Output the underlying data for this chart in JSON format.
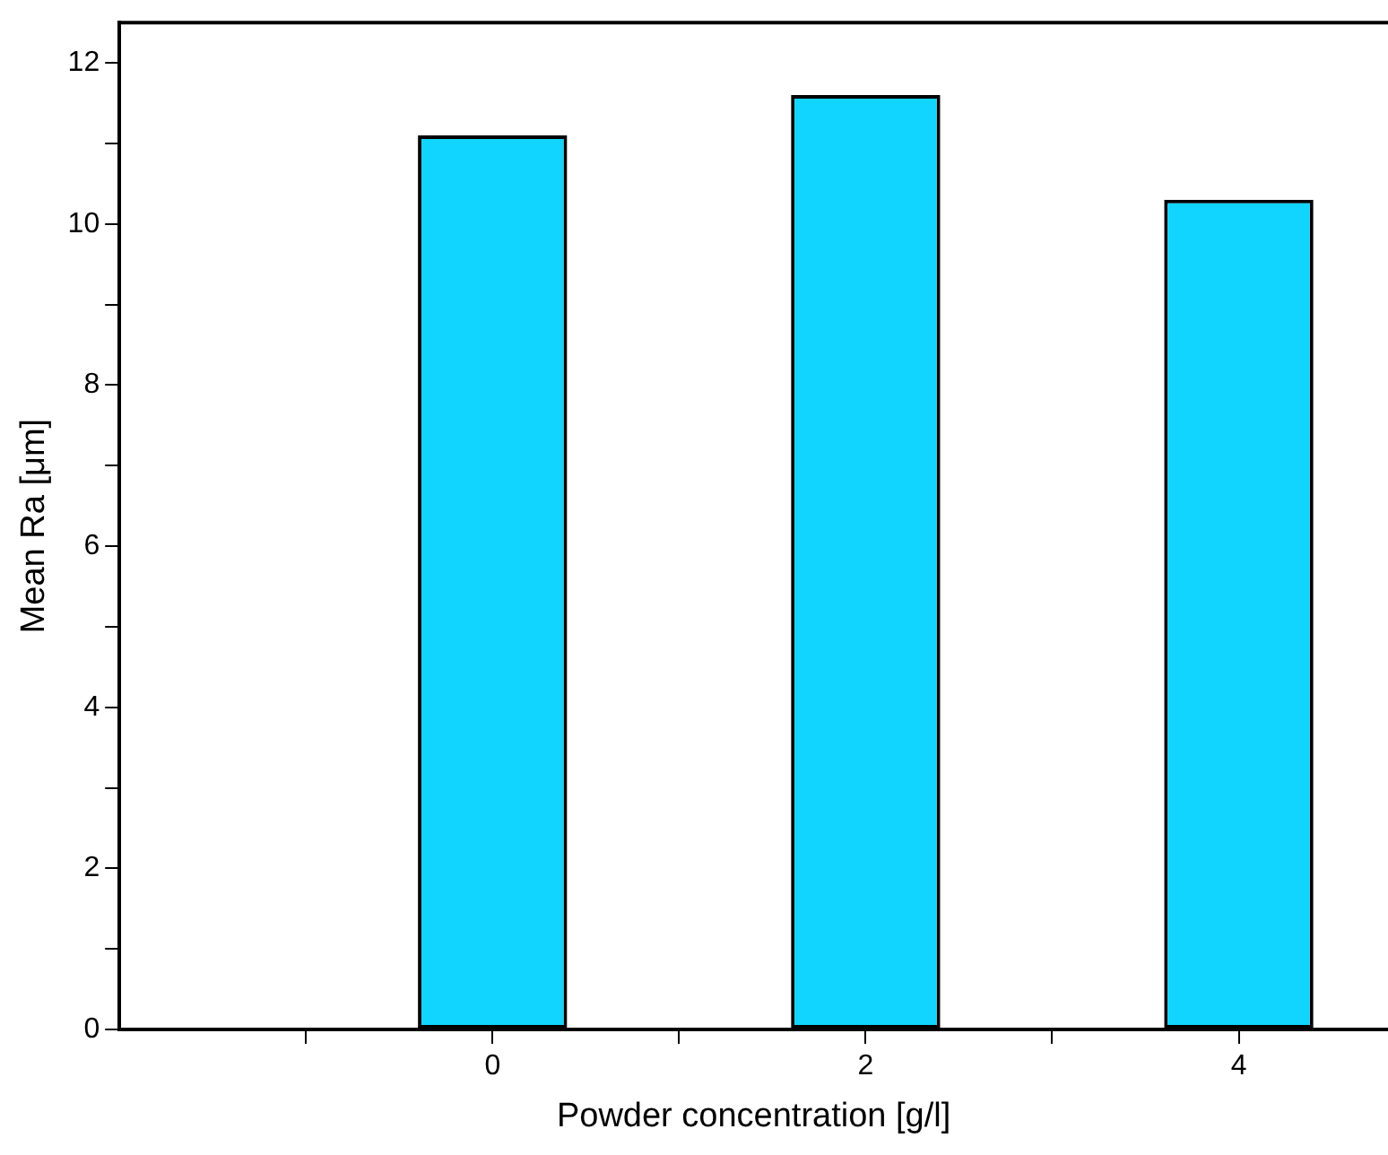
{
  "chart_data": {
    "type": "bar",
    "xlabel": "Powder concentration [g/l]",
    "ylabel": "Mean Ra [μm]",
    "x": [
      0,
      2,
      4
    ],
    "values": [
      11.1,
      11.6,
      10.3
    ],
    "color": "#11d4ff",
    "xlim": [
      -2,
      4.8
    ],
    "xticks": [
      {
        "value": -1,
        "label": null
      },
      0,
      {
        "value": 1,
        "label": null
      },
      2,
      {
        "value": 3,
        "label": null
      },
      4
    ],
    "ylim": [
      0,
      12.5
    ],
    "yticks": [
      0,
      {
        "value": 1,
        "label": null
      },
      2,
      {
        "value": 3,
        "label": null
      },
      4,
      {
        "value": 5,
        "label": null
      },
      6,
      {
        "value": 7,
        "label": null
      },
      8,
      {
        "value": 9,
        "label": null
      },
      10,
      {
        "value": 11,
        "label": null
      },
      12
    ],
    "grid": false,
    "legend": false
  }
}
